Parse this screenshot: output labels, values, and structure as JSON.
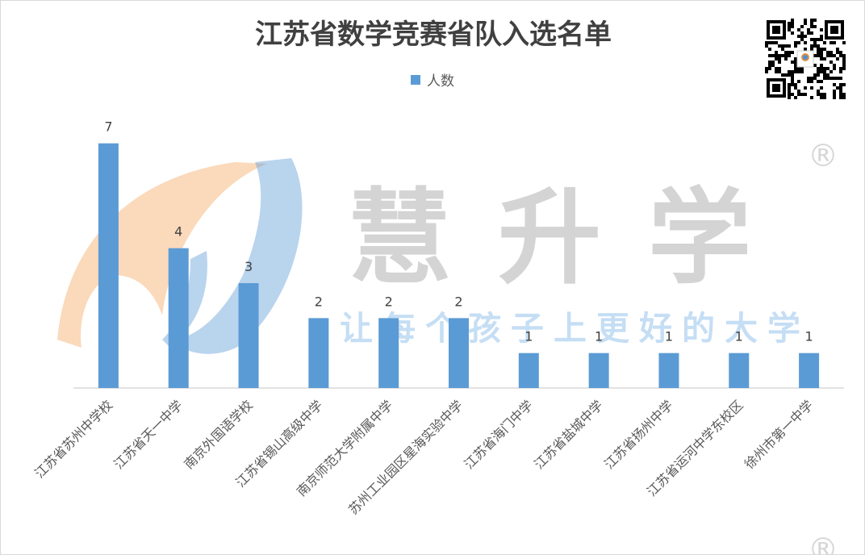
{
  "watermark": {
    "brand": "慧升学",
    "slogan": "让每个孩子上更好的大学",
    "registered": "®"
  },
  "chart_data": {
    "type": "bar",
    "title": "江苏省数学竞赛省队入选名单",
    "xlabel": "",
    "ylabel": "",
    "legend_position": "top",
    "grid": false,
    "color": "#5b9bd5",
    "ylim": [
      0,
      7.5
    ],
    "categories": [
      "江苏省苏州中学校",
      "江苏省天一中学",
      "南京外国语学校",
      "江苏省锡山高级中学",
      "南京师范大学附属中学",
      "苏州工业园区星海实验中学",
      "江苏省海门中学",
      "江苏省盐城中学",
      "江苏省扬州中学",
      "江苏省运河中学东校区",
      "徐州市第一中学"
    ],
    "series": [
      {
        "name": "人数",
        "values": [
          7,
          4,
          3,
          2,
          2,
          2,
          1,
          1,
          1,
          1,
          1
        ]
      }
    ]
  }
}
